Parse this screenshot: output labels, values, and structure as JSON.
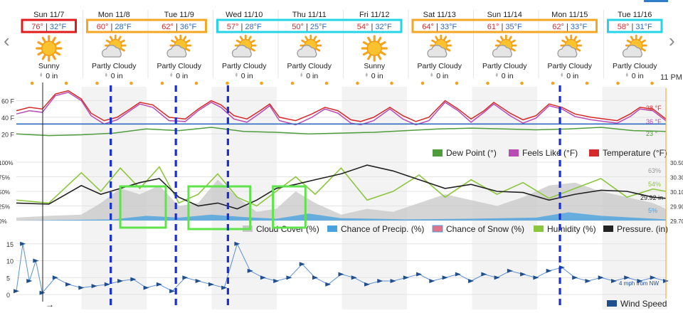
{
  "nav": {
    "prev_label": "‹",
    "next_label": "›",
    "time_label": "11 PM"
  },
  "days": [
    {
      "date": "Sun 11/7",
      "high": "76°",
      "low": "32°F",
      "condition": "Sunny",
      "icon": "sun-icon",
      "precip": "0 in"
    },
    {
      "date": "Mon 11/8",
      "high": "60°",
      "low": "28°F",
      "condition": "Partly Cloudy",
      "icon": "partly-cloudy-icon",
      "precip": "0 in"
    },
    {
      "date": "Tue 11/9",
      "high": "62°",
      "low": "36°F",
      "condition": "Partly Cloudy",
      "icon": "partly-cloudy-icon",
      "precip": "0 in"
    },
    {
      "date": "Wed 11/10",
      "high": "57°",
      "low": "28°F",
      "condition": "Partly Cloudy",
      "icon": "partly-cloudy-icon",
      "precip": "0 in"
    },
    {
      "date": "Thu 11/11",
      "high": "50°",
      "low": "25°F",
      "condition": "Partly Cloudy",
      "icon": "partly-cloudy-icon",
      "precip": "0 in"
    },
    {
      "date": "Fri 11/12",
      "high": "54°",
      "low": "32°F",
      "condition": "Sunny",
      "icon": "sun-icon",
      "precip": "0 in"
    },
    {
      "date": "Sat 11/13",
      "high": "64°",
      "low": "33°F",
      "condition": "Partly Cloudy",
      "icon": "partly-cloudy-icon",
      "precip": "0 in"
    },
    {
      "date": "Sun 11/14",
      "high": "61°",
      "low": "35°F",
      "condition": "Partly Cloudy",
      "icon": "partly-cloudy-icon",
      "precip": "0 in"
    },
    {
      "date": "Mon 11/15",
      "high": "62°",
      "low": "33°F",
      "condition": "Partly Cloudy",
      "icon": "partly-cloudy-icon",
      "precip": "0 in"
    },
    {
      "date": "Tue 11/16",
      "high": "58°",
      "low": "31°F",
      "condition": "Partly Cloudy",
      "icon": "partly-cloudy-icon",
      "precip": "0 in"
    }
  ],
  "colors": {
    "temperature": "#d42a2a",
    "feels_like": "#b84bb4",
    "dew_point": "#4f9c3c",
    "freezing_line": "#2f6bbf",
    "humidity": "#8cc63f",
    "pressure": "#222222",
    "cloud_cover": "#c7c7c7",
    "precip_chance": "#4aa3df",
    "snow_chance": "#e0738a",
    "wind": "#5b8fd6",
    "wind_arrow": "#1f4e8c",
    "high_text": "#d42a2a",
    "low_text": "#2f6bbf",
    "box_red": "#e01b1b",
    "box_orange": "#f5a623",
    "box_cyan": "#27d3e6",
    "box_green": "#5fe34a",
    "dash_blue": "#1c2fd6"
  },
  "chart_data": [
    {
      "type": "line",
      "title": "",
      "ylabel": "",
      "yticks": [
        "60 F",
        "40 F",
        "20 F"
      ],
      "ylim": [
        10,
        75
      ],
      "x_unit": "days from Sun 11/7 00:00",
      "series": [
        {
          "name": "Temperature (°F)",
          "x": [
            0,
            0.2,
            0.4,
            0.6,
            0.8,
            1.0,
            1.15,
            1.35,
            1.55,
            1.75,
            1.9,
            2.1,
            2.35,
            2.6,
            2.8,
            3.0,
            3.15,
            3.35,
            3.55,
            3.75,
            3.9,
            4.05,
            4.3,
            4.55,
            4.75,
            4.95,
            5.15,
            5.3,
            5.5,
            5.75,
            5.95,
            6.15,
            6.35,
            6.6,
            6.8,
            7.0,
            7.2,
            7.35,
            7.6,
            7.8,
            8.0,
            8.2,
            8.4,
            8.6,
            8.85,
            9.05,
            9.25,
            9.45,
            9.6,
            9.8,
            10.0
          ],
          "values": [
            48,
            52,
            50,
            68,
            72,
            62,
            45,
            36,
            40,
            50,
            58,
            55,
            40,
            38,
            50,
            60,
            55,
            42,
            38,
            48,
            56,
            40,
            36,
            44,
            52,
            48,
            37,
            35,
            40,
            52,
            42,
            35,
            40,
            60,
            50,
            38,
            48,
            58,
            45,
            37,
            42,
            56,
            52,
            44,
            40,
            38,
            36,
            44,
            52,
            50,
            38
          ]
        },
        {
          "name": "Feels Like (°F)",
          "x": [
            0,
            0.2,
            0.4,
            0.6,
            0.8,
            1.0,
            1.15,
            1.35,
            1.55,
            1.75,
            1.9,
            2.1,
            2.35,
            2.6,
            2.8,
            3.0,
            3.15,
            3.35,
            3.55,
            3.75,
            3.9,
            4.05,
            4.3,
            4.55,
            4.75,
            4.95,
            5.15,
            5.3,
            5.5,
            5.75,
            5.95,
            6.15,
            6.35,
            6.6,
            6.8,
            7.0,
            7.2,
            7.35,
            7.6,
            7.8,
            8.0,
            8.2,
            8.4,
            8.6,
            8.85,
            9.05,
            9.25,
            9.45,
            9.6,
            9.8,
            10.0
          ],
          "values": [
            44,
            48,
            46,
            66,
            70,
            60,
            42,
            32,
            37,
            48,
            56,
            52,
            36,
            35,
            48,
            58,
            52,
            38,
            34,
            45,
            54,
            36,
            31,
            40,
            50,
            45,
            33,
            31,
            36,
            50,
            38,
            31,
            36,
            58,
            48,
            34,
            46,
            56,
            42,
            33,
            39,
            54,
            50,
            41,
            37,
            35,
            33,
            41,
            50,
            48,
            36
          ]
        },
        {
          "name": "Dew Point (°)",
          "x": [
            0,
            0.5,
            1.0,
            1.5,
            2.0,
            2.5,
            3.0,
            3.5,
            4.0,
            4.5,
            5.0,
            5.5,
            6.0,
            6.5,
            7.0,
            7.5,
            8.0,
            8.5,
            9.0,
            9.5,
            10.0
          ],
          "values": [
            20,
            18,
            19,
            21,
            26,
            24,
            28,
            23,
            22,
            20,
            21,
            22,
            24,
            26,
            27,
            26,
            25,
            26,
            28,
            24,
            23
          ]
        },
        {
          "name": "Freezing",
          "x": [
            0,
            10
          ],
          "values": [
            32,
            32
          ]
        }
      ],
      "end_labels": [
        "38 °F",
        "36 °F",
        "23 °"
      ],
      "legend": [
        "Dew Point (°)",
        "Feels Like (°F)",
        "Temperature (°F)"
      ]
    },
    {
      "type": "area",
      "title": "",
      "yticks_left": [
        "100%",
        "75%",
        "50%",
        "25%",
        "0%"
      ],
      "yticks_right": [
        "30.50",
        "30.30",
        "30.10",
        "29.90",
        "29.70"
      ],
      "ylim": [
        0,
        100
      ],
      "x_unit": "days from Sun 11/7 00:00",
      "series": [
        {
          "name": "Cloud Cover (%)",
          "x": [
            0,
            0.5,
            1.0,
            1.3,
            1.6,
            1.9,
            2.2,
            2.5,
            2.8,
            3.1,
            3.4,
            3.7,
            4.0,
            4.3,
            4.6,
            5.0,
            5.4,
            5.8,
            6.2,
            6.6,
            7.0,
            7.4,
            7.8,
            8.2,
            8.6,
            9.0,
            9.4,
            9.8,
            10.0
          ],
          "values": [
            5,
            8,
            10,
            30,
            55,
            45,
            60,
            25,
            30,
            70,
            40,
            15,
            20,
            50,
            30,
            10,
            20,
            15,
            30,
            45,
            35,
            25,
            40,
            60,
            65,
            50,
            40,
            30,
            20
          ]
        },
        {
          "name": "Chance of Precip. (%)",
          "x": [
            0,
            1.5,
            2.0,
            2.5,
            3.0,
            3.5,
            4.0,
            4.5,
            5.0,
            6.0,
            7.0,
            8.0,
            8.5,
            9.0,
            10.0
          ],
          "values": [
            0,
            2,
            8,
            5,
            10,
            6,
            3,
            12,
            4,
            2,
            3,
            5,
            14,
            8,
            2
          ]
        },
        {
          "name": "Chance of Snow (%)",
          "x": [
            0,
            10
          ],
          "values": [
            0,
            0
          ]
        },
        {
          "name": "Humidity (%)",
          "x": [
            0,
            0.5,
            1.0,
            1.3,
            1.6,
            1.9,
            2.2,
            2.5,
            2.8,
            3.1,
            3.4,
            3.7,
            4.0,
            4.3,
            4.6,
            5.0,
            5.4,
            5.8,
            6.2,
            6.6,
            7.0,
            7.4,
            7.8,
            8.2,
            8.6,
            9.0,
            9.4,
            9.8,
            10.0
          ],
          "values": [
            35,
            30,
            82,
            50,
            90,
            55,
            92,
            30,
            45,
            80,
            40,
            25,
            50,
            75,
            45,
            90,
            35,
            50,
            78,
            40,
            70,
            45,
            65,
            38,
            55,
            72,
            40,
            54,
            50
          ]
        },
        {
          "name": "Pressure. (in)",
          "x": [
            0,
            0.5,
            1.0,
            1.3,
            1.6,
            1.9,
            2.2,
            2.5,
            2.8,
            3.1,
            3.4,
            3.7,
            4.0,
            4.3,
            4.6,
            5.0,
            5.4,
            5.8,
            6.2,
            6.6,
            7.0,
            7.4,
            7.8,
            8.2,
            8.6,
            9.0,
            9.4,
            9.8,
            10.0
          ],
          "values": [
            30,
            28,
            60,
            45,
            55,
            65,
            72,
            40,
            25,
            30,
            20,
            35,
            55,
            62,
            70,
            80,
            95,
            85,
            70,
            55,
            62,
            50,
            48,
            35,
            45,
            52,
            50,
            40,
            38
          ]
        }
      ],
      "end_labels": [
        "63%",
        "54%",
        "29.92 in",
        "5%"
      ],
      "legend": [
        "Cloud Cover (%)",
        "Chance of Precip. (%)",
        "Chance of Snow (%)",
        "Humidity (%)",
        "Pressure. (in)"
      ]
    },
    {
      "type": "line",
      "title": "",
      "yticks": [
        "15",
        "10",
        "5",
        "0"
      ],
      "ylim": [
        0,
        16
      ],
      "x_unit": "days from Sun 11/7 00:00",
      "series": [
        {
          "name": "Wind Speed",
          "x": [
            0,
            0.1,
            0.2,
            0.3,
            0.4,
            0.6,
            0.8,
            1.0,
            1.2,
            1.4,
            1.6,
            1.8,
            2.0,
            2.2,
            2.4,
            2.6,
            2.8,
            3.0,
            3.2,
            3.4,
            3.6,
            3.8,
            4.0,
            4.2,
            4.4,
            4.6,
            4.8,
            5.0,
            5.2,
            5.4,
            5.6,
            5.8,
            6.0,
            6.2,
            6.4,
            6.6,
            6.8,
            7.0,
            7.2,
            7.4,
            7.6,
            7.8,
            8.0,
            8.2,
            8.4,
            8.6,
            8.8,
            9.0,
            9.2,
            9.4,
            9.6,
            9.8,
            10.0
          ],
          "values": [
            1,
            15,
            4,
            10,
            0.5,
            5,
            3,
            2,
            2.5,
            3,
            4,
            4.5,
            2,
            3,
            1,
            5,
            4,
            3,
            2,
            15,
            7,
            5,
            4,
            5,
            9,
            5,
            3,
            6,
            5,
            3,
            4,
            4,
            5,
            6,
            4,
            5,
            6,
            4,
            6,
            5,
            7,
            6,
            5,
            7,
            8,
            5,
            4,
            5,
            4,
            5,
            4,
            5,
            4
          ]
        }
      ],
      "end_labels": [
        "4 mph from NW"
      ],
      "legend": [
        "Wind Speed"
      ]
    }
  ],
  "annotations": {
    "red_box_days": [
      0
    ],
    "orange_box_days": [
      [
        1,
        2
      ],
      [
        6,
        8
      ]
    ],
    "cyan_box_days": [
      [
        3,
        5
      ],
      [
        9,
        9
      ]
    ],
    "dashed_lines_at_day": [
      1.45,
      2.45,
      3.25,
      8.35
    ],
    "green_boxes_x_days": [
      [
        1.6,
        2.3
      ],
      [
        2.65,
        3.6
      ],
      [
        3.95,
        4.45
      ]
    ]
  }
}
